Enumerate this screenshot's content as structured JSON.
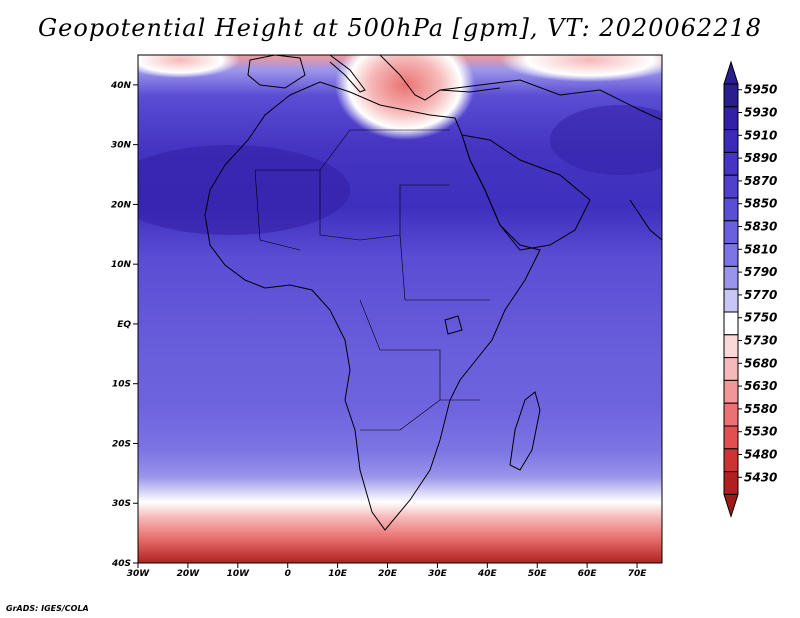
{
  "title": "Geopotential Height at 500hPa [gpm], VT: 2020062218",
  "footer": "GrADS: IGES/COLA",
  "map": {
    "lon_ticks": [
      "30W",
      "20W",
      "10W",
      "0",
      "10E",
      "20E",
      "30E",
      "40E",
      "50E",
      "60E",
      "70E"
    ],
    "lat_ticks": [
      "40N",
      "30N",
      "20N",
      "10N",
      "EQ",
      "10S",
      "20S",
      "30S",
      "40S"
    ]
  },
  "colorbar": {
    "levels": [
      "5950",
      "5930",
      "5910",
      "5890",
      "5870",
      "5850",
      "5830",
      "5810",
      "5790",
      "5770",
      "5750",
      "5730",
      "5680",
      "5630",
      "5580",
      "5530",
      "5480",
      "5430"
    ],
    "colors": [
      "#2a1d8c",
      "#3320a6",
      "#3b2bb8",
      "#4535c2",
      "#5040cc",
      "#5b4dd4",
      "#6a5fdc",
      "#7d75e3",
      "#9a94ea",
      "#c8c6f5",
      "#ffffff",
      "#fbd9d9",
      "#f6b9b9",
      "#f19797",
      "#ea7272",
      "#e05050",
      "#cc3333",
      "#b02020"
    ]
  }
}
